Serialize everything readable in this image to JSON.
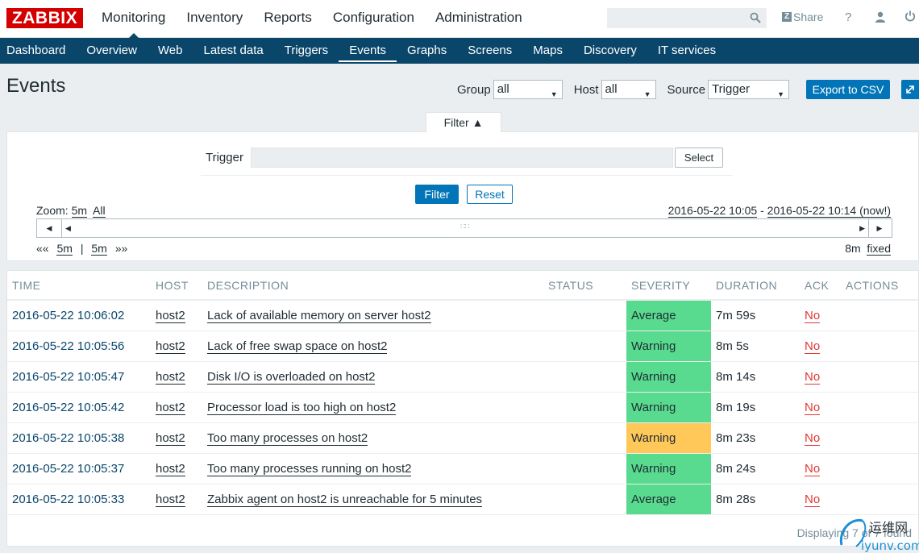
{
  "logo": "ZABBIX",
  "top_menu": [
    "Monitoring",
    "Inventory",
    "Reports",
    "Configuration",
    "Administration"
  ],
  "top_right": {
    "share_label": "Share",
    "share_badge": "Z",
    "help_label": "?"
  },
  "sub_menu": [
    "Dashboard",
    "Overview",
    "Web",
    "Latest data",
    "Triggers",
    "Events",
    "Graphs",
    "Screens",
    "Maps",
    "Discovery",
    "IT services"
  ],
  "page_title": "Events",
  "header_controls": {
    "group_label": "Group",
    "group_value": "all",
    "host_label": "Host",
    "host_value": "all",
    "source_label": "Source",
    "source_value": "Trigger",
    "export_label": "Export to CSV"
  },
  "filter": {
    "tab_label": "Filter ▲",
    "trigger_label": "Trigger",
    "select_label": "Select",
    "filter_button": "Filter",
    "reset_button": "Reset"
  },
  "timeline": {
    "zoom_label": "Zoom:",
    "zoom_5m": "5m",
    "zoom_all": "All",
    "period_start": "2016-05-22 10:05",
    "period_sep": " - ",
    "period_end": "2016-05-22 10:14 (now!)",
    "nav_back_all": "««",
    "nav_back": "5m",
    "nav_sep": "|",
    "nav_fwd": "5m",
    "nav_fwd_all": "»»",
    "period_len": "8m",
    "fixed_label": "fixed"
  },
  "table": {
    "columns": [
      "TIME",
      "HOST",
      "DESCRIPTION",
      "STATUS",
      "SEVERITY",
      "DURATION",
      "ACK",
      "ACTIONS"
    ],
    "rows": [
      {
        "time": "2016-05-22 10:06:02",
        "host": "host2",
        "description": "Lack of available memory on server host2",
        "status": "",
        "severity": "Average",
        "severity_color": "#59db8f",
        "duration": "7m 59s",
        "ack": "No",
        "actions": ""
      },
      {
        "time": "2016-05-22 10:05:56",
        "host": "host2",
        "description": "Lack of free swap space on host2",
        "status": "",
        "severity": "Warning",
        "severity_color": "#59db8f",
        "duration": "8m 5s",
        "ack": "No",
        "actions": ""
      },
      {
        "time": "2016-05-22 10:05:47",
        "host": "host2",
        "description": "Disk I/O is overloaded on host2",
        "status": "",
        "severity": "Warning",
        "severity_color": "#59db8f",
        "duration": "8m 14s",
        "ack": "No",
        "actions": ""
      },
      {
        "time": "2016-05-22 10:05:42",
        "host": "host2",
        "description": "Processor load is too high on host2",
        "status": "",
        "severity": "Warning",
        "severity_color": "#59db8f",
        "duration": "8m 19s",
        "ack": "No",
        "actions": ""
      },
      {
        "time": "2016-05-22 10:05:38",
        "host": "host2",
        "description": "Too many processes on host2",
        "status": "",
        "severity": "Warning",
        "severity_color": "#ffc859",
        "duration": "8m 23s",
        "ack": "No",
        "actions": ""
      },
      {
        "time": "2016-05-22 10:05:37",
        "host": "host2",
        "description": "Too many processes running on host2",
        "status": "",
        "severity": "Warning",
        "severity_color": "#59db8f",
        "duration": "8m 24s",
        "ack": "No",
        "actions": ""
      },
      {
        "time": "2016-05-22 10:05:33",
        "host": "host2",
        "description": "Zabbix agent on host2 is unreachable for 5 minutes",
        "status": "",
        "severity": "Average",
        "severity_color": "#59db8f",
        "duration": "8m 28s",
        "ack": "No",
        "actions": ""
      }
    ],
    "footer": "Displaying 7 of 7 found"
  },
  "watermark": {
    "text_cn": "运维网",
    "text_url": "iyunv.com"
  },
  "colors": {
    "brand": "#d40000",
    "nav": "#0a466a",
    "accent": "#0275b8",
    "ok_green": "#59db8f",
    "warn_orange": "#ffc859"
  }
}
